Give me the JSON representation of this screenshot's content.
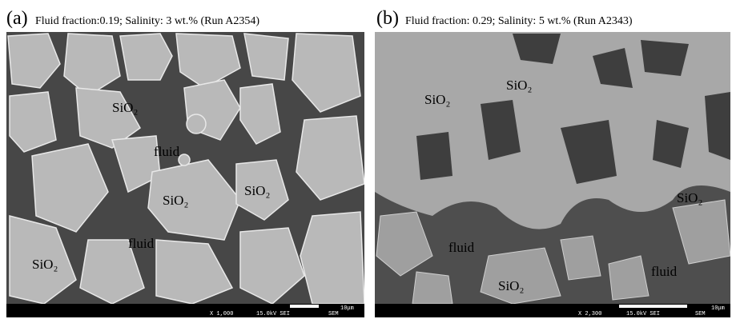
{
  "panels": [
    {
      "letter": "(a)",
      "caption": "Fluid fraction:0.19; Salinity: 3 wt.% (Run A2354)",
      "labels": [
        "SiO₂",
        "fluid",
        "SiO₂",
        "SiO₂",
        "fluid",
        "SiO₂"
      ],
      "footer": {
        "magnification": "X 1,000",
        "voltage": "15.0kV SEI",
        "mode": "SEM",
        "scale": "10μm"
      }
    },
    {
      "letter": "(b)",
      "caption": "Fluid fraction: 0.29; Salinity: 5 wt.% (Run A2343)",
      "labels": [
        "SiO₂",
        "SiO₂",
        "SiO₂",
        "fluid",
        "fluid",
        "SiO₂"
      ],
      "footer": {
        "magnification": "X 2,300",
        "voltage": "15.0kV SEI",
        "mode": "SEM",
        "scale": "10μm"
      }
    }
  ]
}
